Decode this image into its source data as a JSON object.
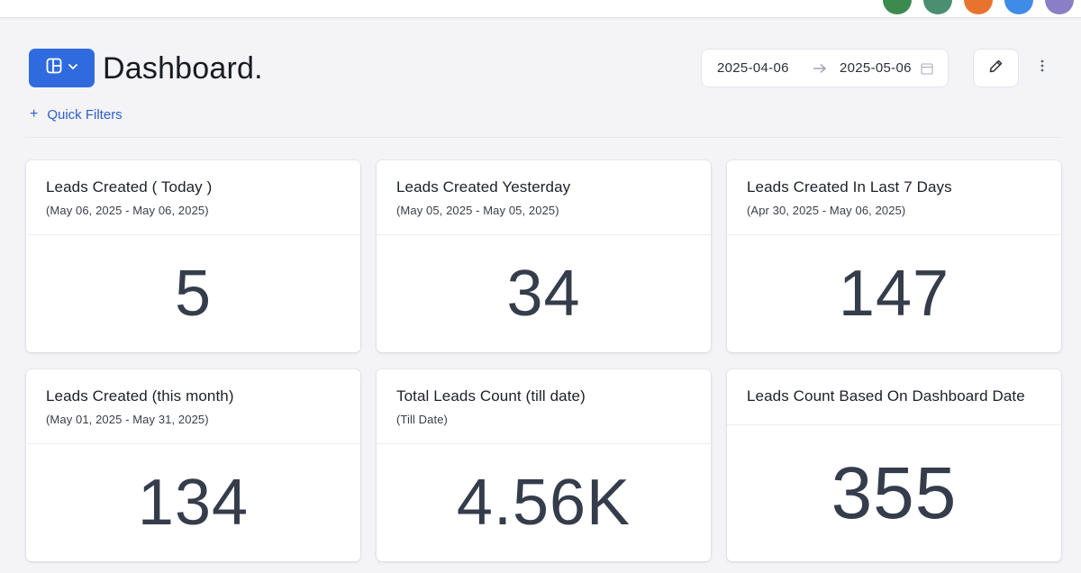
{
  "header": {
    "title": "Dashboard.",
    "avatars": [
      "#3c8a4e",
      "#4a8f6f",
      "#e8732f",
      "#3f8be8",
      "#8a7fc7"
    ]
  },
  "toolbar": {
    "layout_icon": "layout-grid-icon",
    "date_start": "2025-04-06",
    "date_end": "2025-05-06",
    "edit_icon": "pencil-icon",
    "more_icon": "more-vertical-icon"
  },
  "filters": {
    "plus": "+",
    "label": "Quick Filters"
  },
  "cards": [
    {
      "title": "Leads Created ( Today )",
      "subtitle": "(May 06, 2025 - May 06, 2025)",
      "value": "5"
    },
    {
      "title": "Leads Created Yesterday",
      "subtitle": "(May 05, 2025 - May 05, 2025)",
      "value": "34"
    },
    {
      "title": "Leads Created In Last 7 Days",
      "subtitle": "(Apr 30, 2025 - May 06, 2025)",
      "value": "147"
    },
    {
      "title": "Leads Created (this month)",
      "subtitle": "(May 01, 2025 - May 31, 2025)",
      "value": "134"
    },
    {
      "title": "Total Leads Count (till date)",
      "subtitle": "(Till Date)",
      "value": "4.56K"
    },
    {
      "title": "Leads Count Based On Dashboard Date",
      "subtitle": "",
      "value": "355"
    }
  ],
  "colors": {
    "accent": "#2f6bdf",
    "link": "#2d5fc7",
    "value_text": "#353c4b",
    "background": "#f4f4f7"
  }
}
